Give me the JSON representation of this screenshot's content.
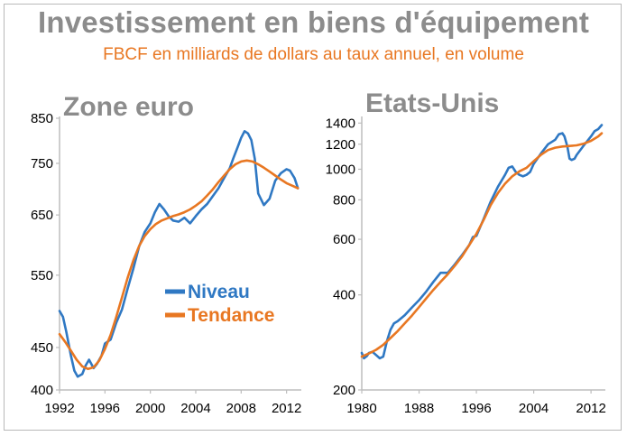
{
  "title": "Investissement en biens d'équipement",
  "subtitle": "FBCF en milliards de dollars au taux annuel, en volume",
  "colors": {
    "niveau": "#2f78c3",
    "tendance": "#e87722",
    "title": "#8c8c8c"
  },
  "legend": {
    "niveau": "Niveau",
    "tendance": "Tendance"
  },
  "chart_data": [
    {
      "type": "line",
      "panel_title": "Zone euro",
      "yscale": "log",
      "ylim": [
        400,
        850
      ],
      "yticks": [
        400,
        450,
        550,
        650,
        750,
        850
      ],
      "xlim": [
        1992,
        2013.3
      ],
      "xticks": [
        1992,
        1996,
        2000,
        2004,
        2008,
        2012
      ],
      "series": [
        {
          "name": "Niveau",
          "x": [
            1992.0,
            1992.3,
            1992.6,
            1993.0,
            1993.3,
            1993.6,
            1994.0,
            1994.3,
            1994.6,
            1995.0,
            1995.3,
            1995.7,
            1996.0,
            1996.5,
            1997.0,
            1997.5,
            1998.0,
            1998.5,
            1999.0,
            1999.5,
            2000.0,
            2000.4,
            2000.8,
            2001.2,
            2001.6,
            2002.0,
            2002.5,
            2003.0,
            2003.5,
            2004.0,
            2004.5,
            2005.0,
            2005.5,
            2006.0,
            2006.5,
            2007.0,
            2007.3,
            2007.7,
            2008.0,
            2008.3,
            2008.6,
            2008.9,
            2009.2,
            2009.5,
            2010.0,
            2010.5,
            2011.0,
            2011.5,
            2012.0,
            2012.3,
            2012.7,
            2013.0
          ],
          "values": [
            498,
            490,
            470,
            440,
            422,
            415,
            418,
            428,
            435,
            425,
            430,
            440,
            455,
            460,
            482,
            500,
            530,
            560,
            595,
            620,
            635,
            655,
            670,
            660,
            648,
            640,
            638,
            645,
            635,
            648,
            660,
            670,
            685,
            700,
            720,
            740,
            760,
            785,
            805,
            820,
            815,
            800,
            760,
            690,
            668,
            680,
            715,
            730,
            738,
            735,
            720,
            700
          ]
        },
        {
          "name": "Tendance",
          "x": [
            1992.0,
            1992.5,
            1993.0,
            1993.5,
            1994.0,
            1994.5,
            1995.0,
            1995.5,
            1996.0,
            1996.5,
            1997.0,
            1997.5,
            1998.0,
            1998.5,
            1999.0,
            1999.5,
            2000.0,
            2000.5,
            2001.0,
            2001.5,
            2002.0,
            2002.5,
            2003.0,
            2003.5,
            2004.0,
            2004.5,
            2005.0,
            2005.5,
            2006.0,
            2006.5,
            2007.0,
            2007.5,
            2008.0,
            2008.5,
            2009.0,
            2009.5,
            2010.0,
            2010.5,
            2011.0,
            2011.5,
            2012.0,
            2012.5,
            2013.0
          ],
          "values": [
            467,
            457,
            446,
            435,
            427,
            424,
            426,
            434,
            448,
            466,
            490,
            517,
            546,
            573,
            596,
            613,
            625,
            634,
            640,
            644,
            648,
            651,
            655,
            660,
            667,
            675,
            686,
            698,
            712,
            725,
            738,
            748,
            754,
            756,
            754,
            748,
            741,
            733,
            725,
            717,
            710,
            705,
            700
          ]
        }
      ]
    },
    {
      "type": "line",
      "panel_title": "Etats-Unis",
      "yscale": "log",
      "ylim": [
        200,
        1450
      ],
      "yticks": [
        200,
        400,
        600,
        800,
        1000,
        1200,
        1400
      ],
      "xlim": [
        1980,
        2014
      ],
      "xticks": [
        1980,
        1988,
        1996,
        2004,
        2012
      ],
      "series": [
        {
          "name": "Niveau",
          "x": [
            1980.0,
            1980.3,
            1980.7,
            1981.0,
            1981.5,
            1982.0,
            1982.5,
            1983.0,
            1983.5,
            1984.0,
            1984.5,
            1985.0,
            1986.0,
            1987.0,
            1988.0,
            1989.0,
            1990.0,
            1991.0,
            1992.0,
            1993.0,
            1994.0,
            1995.0,
            1995.5,
            1996.0,
            1997.0,
            1998.0,
            1999.0,
            2000.0,
            2000.5,
            2001.0,
            2001.5,
            2002.0,
            2002.5,
            2003.0,
            2003.5,
            2004.0,
            2005.0,
            2006.0,
            2007.0,
            2007.5,
            2008.0,
            2008.3,
            2008.7,
            2009.0,
            2009.3,
            2009.7,
            2010.0,
            2011.0,
            2012.0,
            2012.5,
            2013.0,
            2013.5
          ],
          "values": [
            262,
            252,
            256,
            262,
            264,
            258,
            252,
            255,
            285,
            310,
            325,
            330,
            345,
            365,
            385,
            410,
            440,
            470,
            470,
            500,
            535,
            575,
            610,
            615,
            695,
            790,
            880,
            960,
            1010,
            1020,
            980,
            960,
            950,
            960,
            980,
            1040,
            1120,
            1200,
            1240,
            1290,
            1300,
            1270,
            1180,
            1080,
            1070,
            1080,
            1110,
            1190,
            1270,
            1320,
            1340,
            1380
          ]
        },
        {
          "name": "Tendance",
          "x": [
            1980,
            1981,
            1982,
            1983,
            1984,
            1985,
            1986,
            1987,
            1988,
            1989,
            1990,
            1991,
            1992,
            1993,
            1994,
            1995,
            1996,
            1997,
            1998,
            1999,
            2000,
            2001,
            2002,
            2003,
            2004,
            2005,
            2006,
            2007,
            2008,
            2009,
            2010,
            2011,
            2012,
            2013,
            2013.5
          ],
          "values": [
            255,
            261,
            268,
            278,
            292,
            307,
            325,
            344,
            366,
            390,
            415,
            440,
            465,
            495,
            530,
            575,
            625,
            690,
            770,
            840,
            900,
            950,
            985,
            1010,
            1060,
            1110,
            1150,
            1170,
            1180,
            1185,
            1190,
            1205,
            1230,
            1270,
            1300
          ]
        }
      ]
    }
  ]
}
